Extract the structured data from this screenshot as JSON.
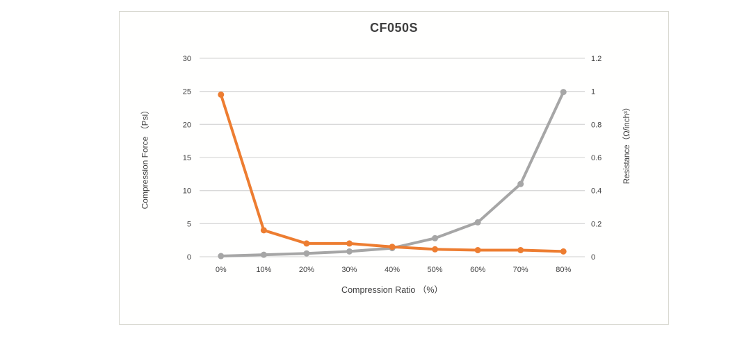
{
  "chart_data": {
    "type": "line",
    "title": "CF050S",
    "categories": [
      "0%",
      "10%",
      "20%",
      "30%",
      "40%",
      "50%",
      "60%",
      "70%",
      "80%"
    ],
    "series": [
      {
        "name": "Compression Force",
        "axis": "left",
        "color": "#a6a6a6",
        "values": [
          0.1,
          0.3,
          0.5,
          0.8,
          1.3,
          2.8,
          5.2,
          11.0,
          24.9
        ]
      },
      {
        "name": "Resistance",
        "axis": "right",
        "color": "#ed7d31",
        "values": [
          0.98,
          0.16,
          0.08,
          0.08,
          0.06,
          0.045,
          0.04,
          0.04,
          0.032
        ]
      }
    ],
    "x_axis": {
      "title": "Compression Ratio （%）"
    },
    "left_axis": {
      "title": "Compression Force （Psi）",
      "min": 0,
      "max": 30,
      "ticks": [
        "0",
        "5",
        "10",
        "15",
        "20",
        "25",
        "30"
      ]
    },
    "right_axis": {
      "title": "Resistance（Ω/inch³）",
      "min": 0,
      "max": 1.2,
      "ticks": [
        "0",
        "0.2",
        "0.4",
        "0.6",
        "0.8",
        "1",
        "1.2"
      ]
    },
    "gridline_color": "#d9d9d9",
    "legend": "none",
    "grid": "horizontal"
  }
}
